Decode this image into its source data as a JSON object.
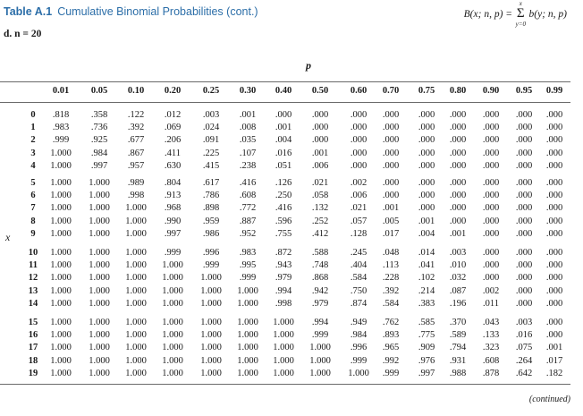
{
  "header": {
    "table_label": "Table A.1",
    "table_title": "Cumulative Binomial Probabilities (cont.)",
    "formula_lhs": "B(x; n, p) =",
    "formula_sum_top": "x",
    "formula_sum_bottom": "y=0",
    "formula_rhs": "b(y; n, p)"
  },
  "subtitle": "d. n = 20",
  "p_label": "p",
  "x_label": "x",
  "columns": [
    "0.01",
    "0.05",
    "0.10",
    "0.20",
    "0.25",
    "0.30",
    "0.40",
    "0.50",
    "0.60",
    "0.70",
    "0.75",
    "0.80",
    "0.90",
    "0.95",
    "0.99"
  ],
  "rows": [
    {
      "x": "0",
      "values": [
        ".818",
        ".358",
        ".122",
        ".012",
        ".003",
        ".001",
        ".000",
        ".000",
        ".000",
        ".000",
        ".000",
        ".000",
        ".000",
        ".000",
        ".000"
      ]
    },
    {
      "x": "1",
      "values": [
        ".983",
        ".736",
        ".392",
        ".069",
        ".024",
        ".008",
        ".001",
        ".000",
        ".000",
        ".000",
        ".000",
        ".000",
        ".000",
        ".000",
        ".000"
      ]
    },
    {
      "x": "2",
      "values": [
        ".999",
        ".925",
        ".677",
        ".206",
        ".091",
        ".035",
        ".004",
        ".000",
        ".000",
        ".000",
        ".000",
        ".000",
        ".000",
        ".000",
        ".000"
      ]
    },
    {
      "x": "3",
      "values": [
        "1.000",
        ".984",
        ".867",
        ".411",
        ".225",
        ".107",
        ".016",
        ".001",
        ".000",
        ".000",
        ".000",
        ".000",
        ".000",
        ".000",
        ".000"
      ]
    },
    {
      "x": "4",
      "values": [
        "1.000",
        ".997",
        ".957",
        ".630",
        ".415",
        ".238",
        ".051",
        ".006",
        ".000",
        ".000",
        ".000",
        ".000",
        ".000",
        ".000",
        ".000"
      ]
    },
    {
      "x": "5",
      "values": [
        "1.000",
        "1.000",
        ".989",
        ".804",
        ".617",
        ".416",
        ".126",
        ".021",
        ".002",
        ".000",
        ".000",
        ".000",
        ".000",
        ".000",
        ".000"
      ]
    },
    {
      "x": "6",
      "values": [
        "1.000",
        "1.000",
        ".998",
        ".913",
        ".786",
        ".608",
        ".250",
        ".058",
        ".006",
        ".000",
        ".000",
        ".000",
        ".000",
        ".000",
        ".000"
      ]
    },
    {
      "x": "7",
      "values": [
        "1.000",
        "1.000",
        "1.000",
        ".968",
        ".898",
        ".772",
        ".416",
        ".132",
        ".021",
        ".001",
        ".000",
        ".000",
        ".000",
        ".000",
        ".000"
      ]
    },
    {
      "x": "8",
      "values": [
        "1.000",
        "1.000",
        "1.000",
        ".990",
        ".959",
        ".887",
        ".596",
        ".252",
        ".057",
        ".005",
        ".001",
        ".000",
        ".000",
        ".000",
        ".000"
      ]
    },
    {
      "x": "9",
      "values": [
        "1.000",
        "1.000",
        "1.000",
        ".997",
        ".986",
        ".952",
        ".755",
        ".412",
        ".128",
        ".017",
        ".004",
        ".001",
        ".000",
        ".000",
        ".000"
      ]
    },
    {
      "x": "10",
      "values": [
        "1.000",
        "1.000",
        "1.000",
        ".999",
        ".996",
        ".983",
        ".872",
        ".588",
        ".245",
        ".048",
        ".014",
        ".003",
        ".000",
        ".000",
        ".000"
      ]
    },
    {
      "x": "11",
      "values": [
        "1.000",
        "1.000",
        "1.000",
        "1.000",
        ".999",
        ".995",
        ".943",
        ".748",
        ".404",
        ".113",
        ".041",
        ".010",
        ".000",
        ".000",
        ".000"
      ]
    },
    {
      "x": "12",
      "values": [
        "1.000",
        "1.000",
        "1.000",
        "1.000",
        "1.000",
        ".999",
        ".979",
        ".868",
        ".584",
        ".228",
        ".102",
        ".032",
        ".000",
        ".000",
        ".000"
      ]
    },
    {
      "x": "13",
      "values": [
        "1.000",
        "1.000",
        "1.000",
        "1.000",
        "1.000",
        "1.000",
        ".994",
        ".942",
        ".750",
        ".392",
        ".214",
        ".087",
        ".002",
        ".000",
        ".000"
      ]
    },
    {
      "x": "14",
      "values": [
        "1.000",
        "1.000",
        "1.000",
        "1.000",
        "1.000",
        "1.000",
        ".998",
        ".979",
        ".874",
        ".584",
        ".383",
        ".196",
        ".011",
        ".000",
        ".000"
      ]
    },
    {
      "x": "15",
      "values": [
        "1.000",
        "1.000",
        "1.000",
        "1.000",
        "1.000",
        "1.000",
        "1.000",
        ".994",
        ".949",
        ".762",
        ".585",
        ".370",
        ".043",
        ".003",
        ".000"
      ]
    },
    {
      "x": "16",
      "values": [
        "1.000",
        "1.000",
        "1.000",
        "1.000",
        "1.000",
        "1.000",
        "1.000",
        ".999",
        ".984",
        ".893",
        ".775",
        ".589",
        ".133",
        ".016",
        ".000"
      ]
    },
    {
      "x": "17",
      "values": [
        "1.000",
        "1.000",
        "1.000",
        "1.000",
        "1.000",
        "1.000",
        "1.000",
        "1.000",
        ".996",
        ".965",
        ".909",
        ".794",
        ".323",
        ".075",
        ".001"
      ]
    },
    {
      "x": "18",
      "values": [
        "1.000",
        "1.000",
        "1.000",
        "1.000",
        "1.000",
        "1.000",
        "1.000",
        "1.000",
        ".999",
        ".992",
        ".976",
        ".931",
        ".608",
        ".264",
        ".017"
      ]
    },
    {
      "x": "19",
      "values": [
        "1.000",
        "1.000",
        "1.000",
        "1.000",
        "1.000",
        "1.000",
        "1.000",
        "1.000",
        "1.000",
        ".999",
        ".997",
        ".988",
        ".878",
        ".642",
        ".182"
      ]
    }
  ],
  "continued": "(continued)",
  "colors": {
    "accent": "#2c6ea8"
  }
}
